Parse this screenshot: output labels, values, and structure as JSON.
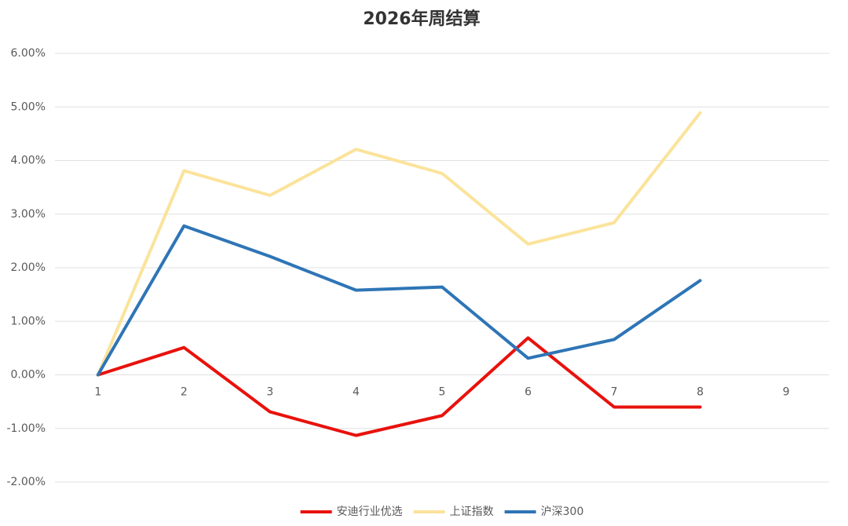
{
  "chart_data": {
    "type": "line",
    "title": "2026年周结算",
    "categories": [
      "1",
      "2",
      "3",
      "4",
      "5",
      "6",
      "7",
      "8",
      "9"
    ],
    "series": [
      {
        "name": "安迪行业优选",
        "color": "#e8120c",
        "values": [
          0,
          0.51,
          -0.69,
          -1.13,
          -0.76,
          0.69,
          -0.6,
          -0.6,
          null
        ]
      },
      {
        "name": "上证指数",
        "color": "#fbe39b",
        "values": [
          0,
          3.81,
          3.35,
          4.21,
          3.76,
          2.44,
          2.84,
          4.89,
          null
        ]
      },
      {
        "name": "沪深300",
        "color": "#2e75b6",
        "values": [
          0,
          2.78,
          2.21,
          1.58,
          1.64,
          0.31,
          0.66,
          1.76,
          null
        ]
      }
    ],
    "ylim": [
      -2,
      6
    ],
    "yticks": [
      {
        "value": -2,
        "label": "-2.00%"
      },
      {
        "value": -1,
        "label": "-1.00%"
      },
      {
        "value": 0,
        "label": "0.00%"
      },
      {
        "value": 1,
        "label": "1.00%"
      },
      {
        "value": 2,
        "label": "2.00%"
      },
      {
        "value": 3,
        "label": "3.00%"
      },
      {
        "value": 4,
        "label": "4.00%"
      },
      {
        "value": 5,
        "label": "5.00%"
      },
      {
        "value": 6,
        "label": "6.00%"
      }
    ],
    "grid": true,
    "legend": "bottom"
  }
}
